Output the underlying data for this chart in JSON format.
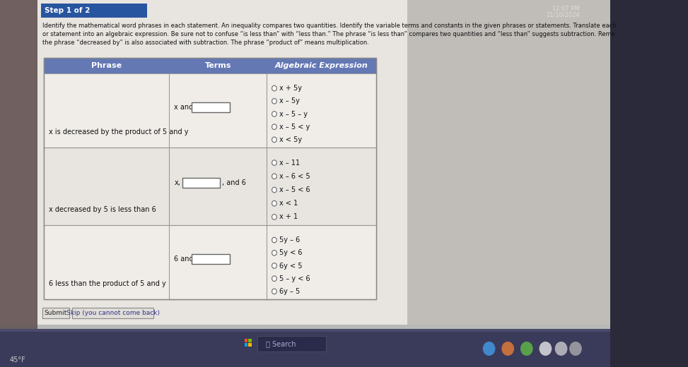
{
  "bg_outer": "#2a2a3a",
  "bg_screen": "#b8b8b8",
  "bg_content": "#e8e5e0",
  "header_bg": "#2855a0",
  "header_text": "Step 1 of 2",
  "header_text_color": "#ffffff",
  "instruction_lines": [
    "Identify the mathematical word phrases in each statement. An inequality compares two quantities. Identify the variable terms and constants in the given phrases or statements. Translate each",
    "or statement into an algebraic expression. Be sure not to confuse “is less than” with “less than.” The phrase “is less than” compares two quantities and “less than” suggests subtraction. Reme",
    "the phrase “decreased by” is also associated with subtraction. The phrase “product of” means multiplication."
  ],
  "table_header_bg": "#6478b4",
  "table_header_text_color": "#ffffff",
  "table_col1": "Phrase",
  "table_col2": "Terms",
  "table_col3": "Algebraic Expression",
  "table_bg": "#e8e5e0",
  "table_line_color": "#999999",
  "row1_phrase": "x is decreased by the product of 5 and y",
  "row1_terms_prefix": "x and",
  "row1_terms_suffix": "",
  "row1_options": [
    "x + 5y",
    "x – 5y",
    "x – 5 – y",
    "x – 5 < y",
    "x < 5y"
  ],
  "row2_phrase": "x decreased by 5 is less than 6",
  "row2_terms_prefix": "x,",
  "row2_terms_suffix": ", and 6",
  "row2_options": [
    "x – 11",
    "x – 6 < 5",
    "x – 5 < 6",
    "x < 1",
    "x + 1"
  ],
  "row3_phrase": "6 less than the product of 5 and y",
  "row3_terms_prefix": "6 and",
  "row3_terms_suffix": "",
  "row3_options": [
    "5y – 6",
    "5y < 6",
    "6y < 5",
    "5 – y < 6",
    "6y – 5"
  ],
  "submit_text": "Submit",
  "skip_text": "Skip (you cannot come back)",
  "temp_text": "45°F",
  "time_text_line1": "11:07 PM",
  "time_text_line2": "11/10/2024",
  "taskbar_bg": "#3a3a5a",
  "search_text": "Search"
}
